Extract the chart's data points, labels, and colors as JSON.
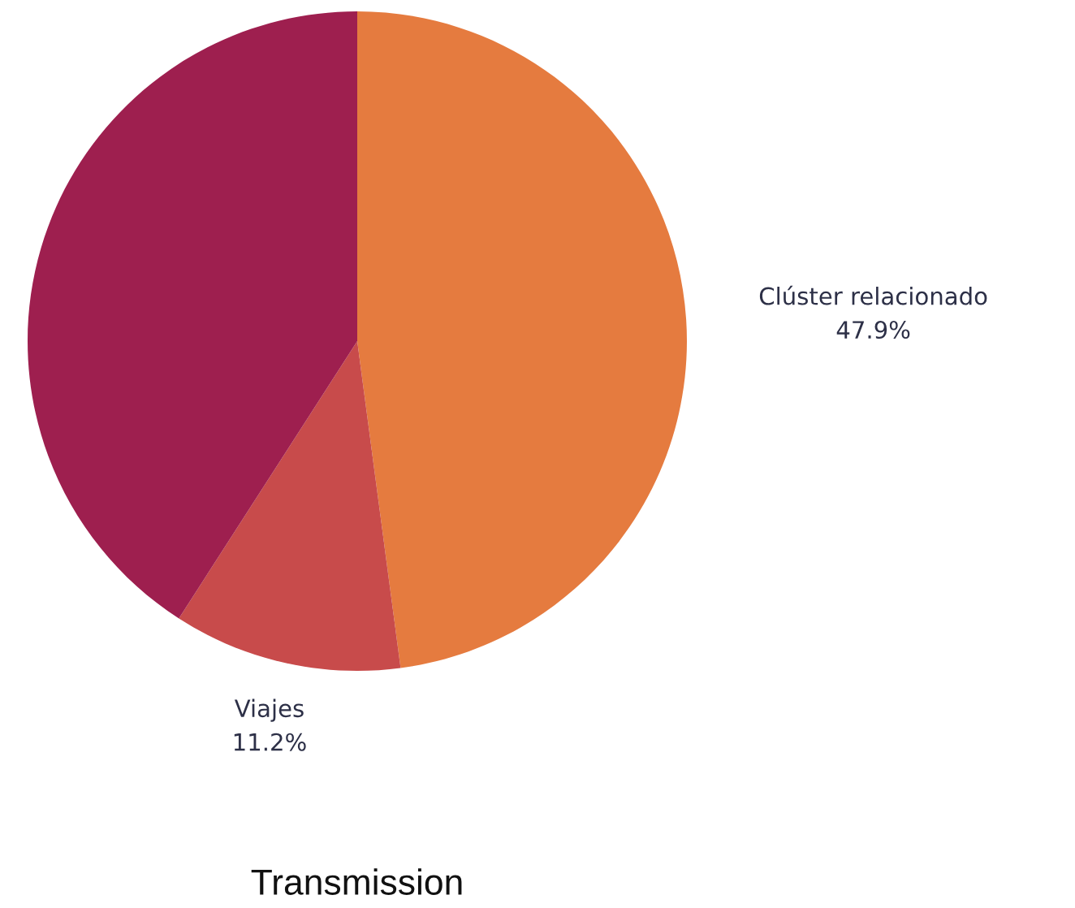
{
  "chart_data": {
    "type": "pie",
    "title": "Transmission",
    "categories": [
      "Clúster relacionado",
      "Viajes",
      null
    ],
    "values": [
      47.9,
      11.2,
      40.9
    ],
    "colors": [
      "#e57b3f",
      "#c84b4b",
      "#9e1f4f"
    ],
    "value_labels": [
      "47.9%",
      "11.2%",
      null
    ]
  }
}
